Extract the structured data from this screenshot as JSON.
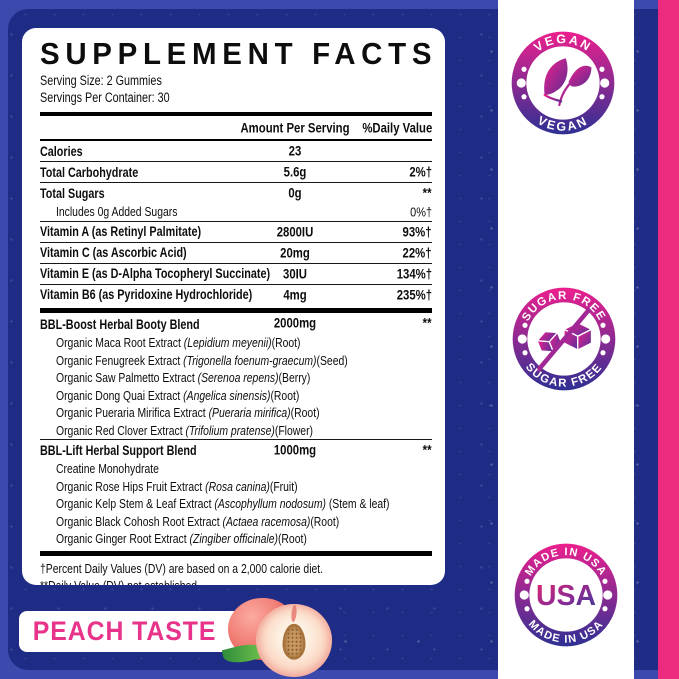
{
  "facts": {
    "title": "SUPPLEMENT FACTS",
    "serving_size": "Serving Size: 2 Gummies",
    "servings_per_container": "Servings Per Container: 30",
    "columns": {
      "amount": "Amount Per Serving",
      "dv": "%Daily Value"
    },
    "rows": [
      {
        "name": "Calories",
        "amount": "23",
        "dv": "",
        "style": "main",
        "sep": "none"
      },
      {
        "name": "Total Carbohydrate",
        "amount": "5.6g",
        "dv": "2%†",
        "style": "main",
        "sep": "thin"
      },
      {
        "name": "Total Sugars",
        "amount": "0g",
        "dv": "**",
        "style": "main",
        "sep": "thin"
      },
      {
        "name": "Includes 0g Added Sugars",
        "amount": "",
        "dv": "0%†",
        "style": "sub",
        "sep": "none"
      },
      {
        "name": "Vitamin A (as Retinyl Palmitate)",
        "amount": "2800IU",
        "dv": "93%†",
        "style": "main",
        "sep": "thin"
      },
      {
        "name": "Vitamin C (as Ascorbic Acid)",
        "amount": "20mg",
        "dv": "22%†",
        "style": "main",
        "sep": "thin"
      },
      {
        "name": "Vitamin E (as D-Alpha Tocopheryl Succinate)",
        "amount": "30IU",
        "dv": "134%†",
        "style": "main",
        "sep": "thin"
      },
      {
        "name": "Vitamin B6 (as Pyridoxine Hydrochloride)",
        "amount": "4mg",
        "dv": "235%†",
        "style": "main",
        "sep": "thin"
      },
      {
        "name": "BBL-Boost Herbal Booty Blend",
        "amount": "2000mg",
        "dv": "**",
        "style": "main",
        "sep": "thick"
      },
      {
        "pre": "Organic Maca Root Extract ",
        "it": "(Lepidium meyenii)",
        "post": "(Root)",
        "style": "sub",
        "sep": "none"
      },
      {
        "pre": "Organic Fenugreek Extract ",
        "it": "(Trigonella foenum-graecum)",
        "post": "(Seed)",
        "style": "sub",
        "sep": "none"
      },
      {
        "pre": "Organic Saw Palmetto Extract ",
        "it": "(Serenoa repens)",
        "post": "(Berry)",
        "style": "sub",
        "sep": "none"
      },
      {
        "pre": "Organic Dong Quai Extract ",
        "it": "(Angelica sinensis)",
        "post": "(Root)",
        "style": "sub",
        "sep": "none"
      },
      {
        "pre": "Organic Pueraria Mirifica Extract ",
        "it": "(Pueraria mirifica)",
        "post": "(Root)",
        "style": "sub",
        "sep": "none"
      },
      {
        "pre": "Organic Red Clover Extract ",
        "it": "(Trifolium pratense)",
        "post": "(Flower)",
        "style": "sub",
        "sep": "none"
      },
      {
        "name": "BBL-Lift Herbal Support Blend",
        "amount": "1000mg",
        "dv": "**",
        "style": "main",
        "sep": "thin"
      },
      {
        "pre": "Creatine Monohydrate",
        "it": "",
        "post": "",
        "style": "sub",
        "sep": "none"
      },
      {
        "pre": "Organic Rose Hips Fruit Extract ",
        "it": "(Rosa canina)",
        "post": "(Fruit)",
        "style": "sub",
        "sep": "none"
      },
      {
        "pre": "Organic Kelp Stem & Leaf Extract ",
        "it": "(Ascophyllum nodosum)",
        "post": " (Stem & leaf)",
        "style": "sub",
        "sep": "none"
      },
      {
        "pre": "Organic Black Cohosh Root Extract ",
        "it": "(Actaea racemosa)",
        "post": "(Root)",
        "style": "sub",
        "sep": "none"
      },
      {
        "pre": "Organic Ginger Root Extract ",
        "it": "(Zingiber officinale)",
        "post": "(Root)",
        "style": "sub",
        "sep": "none"
      }
    ],
    "footnotes": [
      "†Percent Daily Values (DV) are based on a 2,000 calorie diet.",
      "**Daily Value (DV) not established."
    ]
  },
  "badges": {
    "vegan": {
      "top": "VEGAN",
      "bottom": "VEGAN"
    },
    "sugar_free": {
      "top": "SUGAR FREE",
      "bottom": "SUGAR FREE"
    },
    "usa": {
      "top": "MADE IN USA",
      "bottom": "MADE IN USA",
      "center": "USA"
    }
  },
  "banner": {
    "text": "PEACH TASTE"
  },
  "colors": {
    "background_navy": "#1f2c85",
    "frame_blue": "#3c4aad",
    "stripe_pink": "#ed2b7e",
    "badge_gradient_top": "#ec1f8d",
    "badge_gradient_bottom": "#2e3093",
    "banner_text_pink": "#e8338a"
  }
}
